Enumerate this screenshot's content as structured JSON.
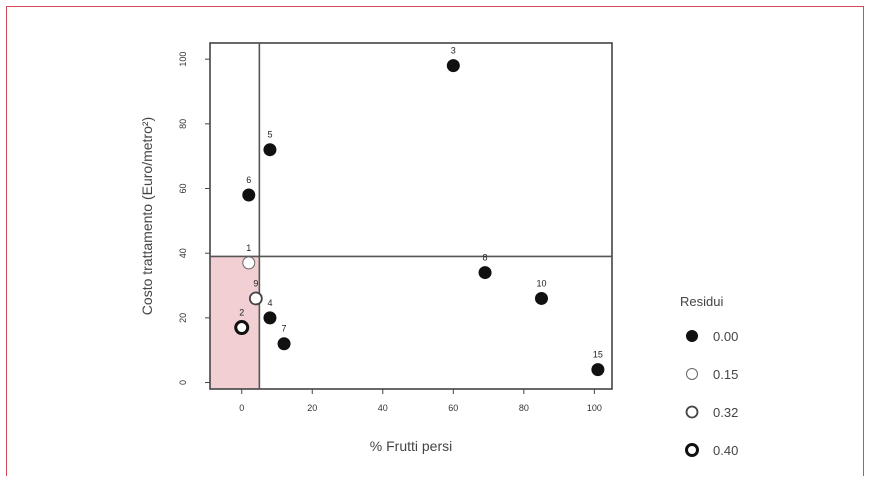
{
  "chart_data": {
    "type": "scatter",
    "xlabel": "% Frutti persi",
    "ylabel": "Costo trattamento (Euro/metro²)",
    "xlim": [
      -9,
      105
    ],
    "ylim": [
      -2,
      105
    ],
    "xticks": [
      0,
      20,
      40,
      60,
      80,
      100
    ],
    "yticks": [
      0,
      20,
      40,
      60,
      80,
      100
    ],
    "ytick_labels": [
      "0",
      "20",
      "40",
      "60",
      "80",
      "100"
    ],
    "threshold_x": 5,
    "threshold_y": 39,
    "shaded_region": {
      "x": [
        -9,
        5
      ],
      "y": [
        -2,
        39
      ],
      "color": "#f2cfd3"
    },
    "points": [
      {
        "label": "1",
        "x": 2,
        "y": 37,
        "residual": "0.15"
      },
      {
        "label": "2",
        "x": 0,
        "y": 17,
        "residual": "0.40"
      },
      {
        "label": "3",
        "x": 60,
        "y": 98,
        "residual": "0.00"
      },
      {
        "label": "4",
        "x": 8,
        "y": 20,
        "residual": "0.00"
      },
      {
        "label": "5",
        "x": 8,
        "y": 72,
        "residual": "0.00"
      },
      {
        "label": "6",
        "x": 2,
        "y": 58,
        "residual": "0.00"
      },
      {
        "label": "7",
        "x": 12,
        "y": 12,
        "residual": "0.00"
      },
      {
        "label": "8",
        "x": 69,
        "y": 34,
        "residual": "0.00"
      },
      {
        "label": "10",
        "x": 85,
        "y": 26,
        "residual": "0.00"
      },
      {
        "label": "15",
        "x": 101,
        "y": 4,
        "residual": "0.00"
      },
      {
        "label": "9",
        "x": 4,
        "y": 26,
        "residual": "0.32"
      }
    ],
    "legend": {
      "title": "Residui",
      "placement": "right",
      "entries": [
        {
          "label": "0.00",
          "style": "filled"
        },
        {
          "label": "0.15",
          "style": "open-thin"
        },
        {
          "label": "0.32",
          "style": "open-medium"
        },
        {
          "label": "0.40",
          "style": "open-thick"
        }
      ]
    }
  }
}
